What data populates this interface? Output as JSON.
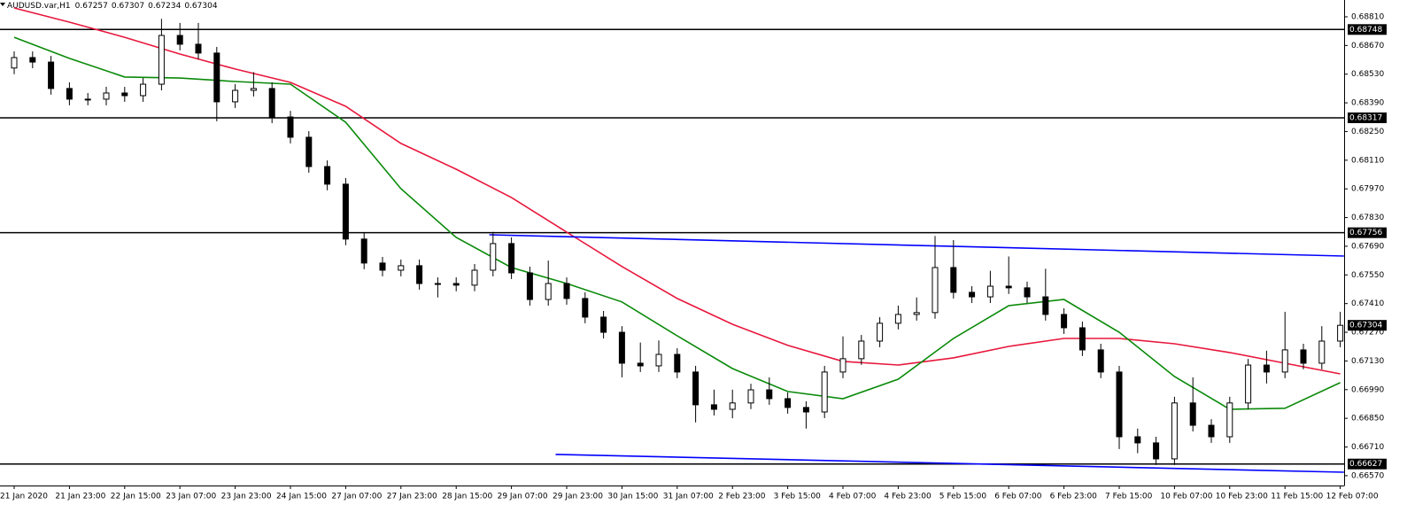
{
  "chart_data": {
    "type": "candlestick",
    "symbol": "AUDUSD.var,H1",
    "ohlc": [
      0.67257,
      0.67307,
      0.67234,
      0.67304
    ],
    "categories": [
      "21 Jan 2020",
      null,
      null,
      "21 Jan 23:00",
      null,
      null,
      "22 Jan 15:00",
      null,
      null,
      "23 Jan 07:00",
      null,
      null,
      "23 Jan 23:00",
      null,
      null,
      "24 Jan 15:00",
      null,
      null,
      "27 Jan 07:00",
      null,
      null,
      "27 Jan 23:00",
      null,
      null,
      "28 Jan 15:00",
      null,
      null,
      "29 Jan 07:00",
      null,
      null,
      "29 Jan 23:00",
      null,
      null,
      "30 Jan 15:00",
      null,
      null,
      "31 Jan 07:00",
      null,
      null,
      "2 Feb 23:00",
      null,
      null,
      "3 Feb 15:00",
      null,
      null,
      "4 Feb 07:00",
      null,
      null,
      "4 Feb 23:00",
      null,
      null,
      "5 Feb 15:00",
      null,
      null,
      "6 Feb 07:00",
      null,
      null,
      "6 Feb 23:00",
      null,
      null,
      "7 Feb 15:00",
      null,
      null,
      "10 Feb 07:00",
      null,
      null,
      "10 Feb 23:00",
      null,
      null,
      "11 Feb 15:00",
      null,
      null,
      "12 Feb 07:00"
    ],
    "open": [
      0.6856,
      0.68611,
      0.68589,
      0.6846,
      0.68408,
      0.68408,
      0.68438,
      0.68425,
      0.68481,
      0.68719,
      0.68676,
      0.68633,
      0.68395,
      0.68451,
      0.6846,
      0.68321,
      0.68222,
      0.68079,
      0.67993,
      0.67725,
      0.67608,
      0.67573,
      0.67595,
      0.67508,
      0.67508,
      0.675,
      0.67573,
      0.67703,
      0.6756,
      0.6743,
      0.67508,
      0.67435,
      0.67344,
      0.6727,
      0.67119,
      0.67106,
      0.67162,
      0.67076,
      0.66916,
      0.66894,
      0.66925,
      0.66989,
      0.66946,
      0.66903,
      0.66881,
      0.67076,
      0.67141,
      0.67227,
      0.67314,
      0.67357,
      0.67366,
      0.67586,
      0.67465,
      0.67443,
      0.67495,
      0.67487,
      0.67443,
      0.67357,
      0.67292,
      0.67184,
      0.67076,
      0.6676,
      0.6673,
      0.66652,
      0.66925,
      0.66816,
      0.6676,
      0.66925,
      0.6711,
      0.67076,
      0.67184,
      0.67119,
      0.67227
    ],
    "high": [
      0.68641,
      0.68641,
      0.68619,
      0.6849,
      0.68438,
      0.68468,
      0.68468,
      0.68511,
      0.688,
      0.6878,
      0.6878,
      0.68663,
      0.68481,
      0.6854,
      0.6849,
      0.68351,
      0.68252,
      0.68109,
      0.68023,
      0.67755,
      0.67638,
      0.67625,
      0.67625,
      0.67538,
      0.67538,
      0.67603,
      0.6776,
      0.67733,
      0.6759,
      0.6762,
      0.67538,
      0.67465,
      0.67374,
      0.673,
      0.6722,
      0.6723,
      0.67192,
      0.67106,
      0.6699,
      0.6699,
      0.67019,
      0.6705,
      0.66976,
      0.66933,
      0.67106,
      0.6725,
      0.67257,
      0.67344,
      0.674,
      0.6744,
      0.6774,
      0.6772,
      0.67495,
      0.6757,
      0.6764,
      0.67517,
      0.6758,
      0.67387,
      0.67322,
      0.67214,
      0.67106,
      0.668,
      0.6676,
      0.66955,
      0.6705,
      0.66846,
      0.66955,
      0.6714,
      0.6718,
      0.6737,
      0.67214,
      0.673,
      0.6737
    ],
    "low": [
      0.6853,
      0.68559,
      0.6843,
      0.68378,
      0.68378,
      0.68378,
      0.68395,
      0.68395,
      0.68451,
      0.68646,
      0.68603,
      0.683,
      0.68365,
      0.68421,
      0.68291,
      0.68192,
      0.68049,
      0.67963,
      0.67695,
      0.67578,
      0.67543,
      0.67543,
      0.67478,
      0.6744,
      0.6747,
      0.6747,
      0.67543,
      0.6753,
      0.674,
      0.674,
      0.67405,
      0.67314,
      0.6724,
      0.6705,
      0.67076,
      0.67076,
      0.67046,
      0.6683,
      0.66864,
      0.6685,
      0.66895,
      0.66916,
      0.66873,
      0.668,
      0.66851,
      0.67046,
      0.67111,
      0.67197,
      0.67284,
      0.67327,
      0.67336,
      0.67435,
      0.67413,
      0.67413,
      0.67457,
      0.67413,
      0.67327,
      0.67262,
      0.67154,
      0.67046,
      0.667,
      0.6668,
      0.66622,
      0.66622,
      0.66786,
      0.6673,
      0.6673,
      0.66895,
      0.6702,
      0.67046,
      0.67089,
      0.67089,
      0.67197
    ],
    "close": [
      0.68611,
      0.68589,
      0.6846,
      0.68408,
      0.68408,
      0.68438,
      0.68425,
      0.68481,
      0.68719,
      0.68676,
      0.68633,
      0.68395,
      0.68451,
      0.6846,
      0.68321,
      0.68222,
      0.68079,
      0.67993,
      0.67725,
      0.67608,
      0.67573,
      0.67595,
      0.67508,
      0.67508,
      0.675,
      0.67573,
      0.67703,
      0.6756,
      0.6743,
      0.67508,
      0.67435,
      0.67344,
      0.6727,
      0.67119,
      0.67106,
      0.67162,
      0.67076,
      0.66916,
      0.66894,
      0.66925,
      0.66989,
      0.66946,
      0.66903,
      0.66881,
      0.67076,
      0.67141,
      0.67227,
      0.67314,
      0.67357,
      0.67366,
      0.67586,
      0.67465,
      0.67443,
      0.67495,
      0.67487,
      0.67443,
      0.67357,
      0.67292,
      0.67184,
      0.67076,
      0.6676,
      0.6673,
      0.66652,
      0.66925,
      0.66816,
      0.6676,
      0.66925,
      0.6711,
      0.67076,
      0.67184,
      0.67119,
      0.67227,
      0.67304
    ],
    "candle_color": "#000000",
    "lines": [
      {
        "color": "#e8173c",
        "x": [
          0,
          3,
          6,
          9,
          12,
          15,
          18,
          21,
          24,
          27,
          30,
          33,
          36,
          39,
          42,
          45,
          48,
          51,
          54,
          57,
          60,
          63,
          66,
          69,
          72
        ],
        "values": [
          0.68853,
          0.68784,
          0.6871,
          0.68628,
          0.68555,
          0.6849,
          0.68373,
          0.68192,
          0.68066,
          0.67928,
          0.67759,
          0.67591,
          0.67435,
          0.67309,
          0.67206,
          0.67128,
          0.6711,
          0.67145,
          0.67201,
          0.6724,
          0.6724,
          0.67214,
          0.67171,
          0.67119,
          0.67067
        ]
      },
      {
        "color": "#0a8a0a",
        "x": [
          0,
          3,
          6,
          9,
          12,
          15,
          18,
          21,
          24,
          27,
          30,
          33,
          36,
          39,
          42,
          45,
          48,
          51,
          54,
          57,
          60,
          63,
          66,
          69,
          72
        ],
        "values": [
          0.6871,
          0.68607,
          0.68516,
          0.68511,
          0.68494,
          0.68481,
          0.68295,
          0.67971,
          0.67733,
          0.67586,
          0.67508,
          0.67418,
          0.67253,
          0.67093,
          0.66981,
          0.66946,
          0.67041,
          0.6724,
          0.674,
          0.6743,
          0.6727,
          0.67054,
          0.66894,
          0.66899,
          0.67024
        ]
      },
      {
        "color": "#0000ff",
        "x": [
          25.8,
          72.2
        ],
        "values": [
          0.67746,
          0.67642
        ]
      },
      {
        "color": "#0000ff",
        "x": [
          29.4,
          72.2
        ],
        "values": [
          0.66674,
          0.66587
        ]
      }
    ],
    "levels": [
      0.68748,
      0.68317,
      0.67756,
      0.66627
    ],
    "current_price": 0.67304,
    "ylim": [
      0.66522,
      0.68892
    ],
    "yticks": [
      {
        "value": 0.6881,
        "label": "0.68810"
      },
      {
        "value": 0.6867,
        "label": "0.68670"
      },
      {
        "value": 0.6853,
        "label": "0.68530"
      },
      {
        "value": 0.6839,
        "label": "0.68390"
      },
      {
        "value": 0.6825,
        "label": "0.68250"
      },
      {
        "value": 0.6811,
        "label": "0.68110"
      },
      {
        "value": 0.6797,
        "label": "0.67970"
      },
      {
        "value": 0.6783,
        "label": "0.67830"
      },
      {
        "value": 0.6769,
        "label": "0.67690"
      },
      {
        "value": 0.6755,
        "label": "0.67550"
      },
      {
        "value": 0.6741,
        "label": "0.67410"
      },
      {
        "value": 0.6727,
        "label": "0.67270"
      },
      {
        "value": 0.6713,
        "label": "0.67130"
      },
      {
        "value": 0.6699,
        "label": "0.66990"
      },
      {
        "value": 0.6685,
        "label": "0.66850"
      },
      {
        "value": 0.6671,
        "label": "0.66710"
      },
      {
        "value": 0.6657,
        "label": "0.66570"
      }
    ]
  }
}
